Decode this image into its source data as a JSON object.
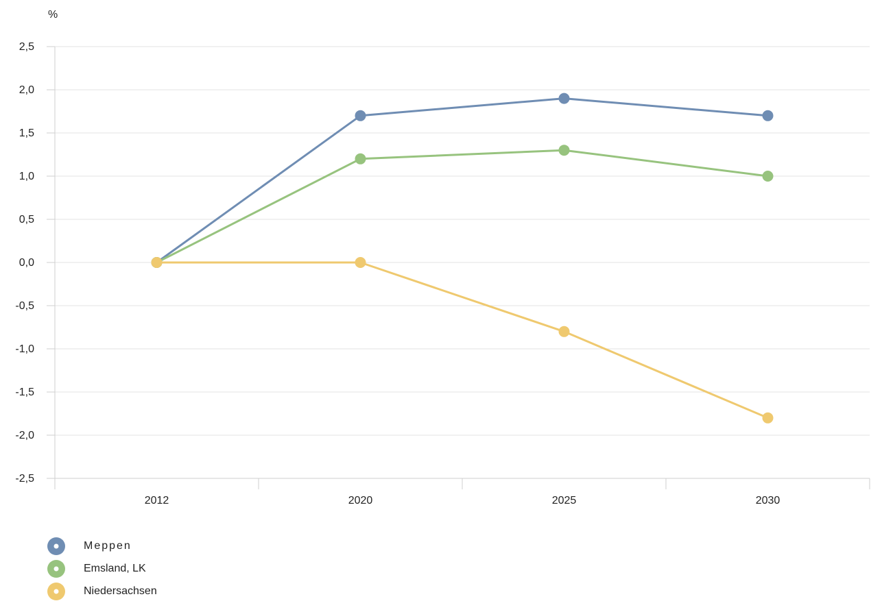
{
  "chart_data": {
    "type": "line",
    "unit_label": "%",
    "categories": [
      "2012",
      "2020",
      "2025",
      "2030"
    ],
    "ylim": [
      -2.5,
      2.5
    ],
    "yticks": [
      "2,5",
      "2,0",
      "1,5",
      "1,0",
      "0,5",
      "0,0",
      "-0,5",
      "-1,0",
      "-1,5",
      "-2,0",
      "-2,5"
    ],
    "grid": true,
    "legend_position": "bottom-left",
    "series": [
      {
        "name": "Meppen",
        "color": "#6f8db3",
        "values": [
          0.0,
          1.7,
          1.9,
          1.7
        ]
      },
      {
        "name": "Emsland, LK",
        "color": "#97c37e",
        "values": [
          0.0,
          1.2,
          1.3,
          1.0
        ]
      },
      {
        "name": "Niedersachsen",
        "color": "#efc96f",
        "values": [
          0.0,
          0.0,
          -0.8,
          -1.8
        ]
      }
    ]
  }
}
